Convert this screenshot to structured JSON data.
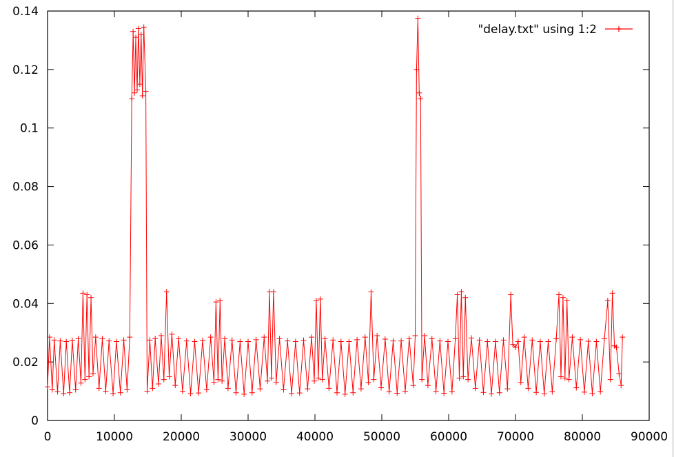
{
  "chart_data": {
    "type": "line",
    "title": "",
    "xlabel": "",
    "ylabel": "",
    "xlim": [
      0,
      90000
    ],
    "ylim": [
      0,
      0.14
    ],
    "x_ticks": [
      "0",
      "10000",
      "20000",
      "30000",
      "40000",
      "50000",
      "60000",
      "70000",
      "80000",
      "90000"
    ],
    "y_ticks": [
      "0",
      "0.02",
      "0.04",
      "0.06",
      "0.08",
      "0.1",
      "0.12",
      "0.14"
    ],
    "legend": {
      "position": "top-right",
      "label": "\"delay.txt\" using 1:2",
      "marker": "plus"
    },
    "grid": false,
    "series": [
      {
        "name": "\"delay.txt\" using 1:2",
        "color": "#ff0000",
        "marker": "plus",
        "points": [
          [
            0,
            0.0115
          ],
          [
            300,
            0.0285
          ],
          [
            700,
            0.0105
          ],
          [
            1000,
            0.0275
          ],
          [
            1500,
            0.0098
          ],
          [
            1900,
            0.0272
          ],
          [
            2400,
            0.0092
          ],
          [
            2800,
            0.027
          ],
          [
            3300,
            0.0095
          ],
          [
            3700,
            0.0274
          ],
          [
            4200,
            0.0105
          ],
          [
            4600,
            0.028
          ],
          [
            5000,
            0.0128
          ],
          [
            5300,
            0.0435
          ],
          [
            5600,
            0.014
          ],
          [
            5900,
            0.043
          ],
          [
            6200,
            0.015
          ],
          [
            6500,
            0.042
          ],
          [
            6800,
            0.016
          ],
          [
            7200,
            0.0285
          ],
          [
            7700,
            0.011
          ],
          [
            8200,
            0.028
          ],
          [
            8700,
            0.01
          ],
          [
            9200,
            0.0272
          ],
          [
            9800,
            0.0092
          ],
          [
            10300,
            0.027
          ],
          [
            10900,
            0.0095
          ],
          [
            11400,
            0.0275
          ],
          [
            11900,
            0.0105
          ],
          [
            12300,
            0.0285
          ],
          [
            12600,
            0.11
          ],
          [
            12800,
            0.133
          ],
          [
            13000,
            0.112
          ],
          [
            13200,
            0.131
          ],
          [
            13400,
            0.113
          ],
          [
            13600,
            0.134
          ],
          [
            13800,
            0.115
          ],
          [
            14000,
            0.132
          ],
          [
            14200,
            0.111
          ],
          [
            14400,
            0.1345
          ],
          [
            14700,
            0.1125
          ],
          [
            14900,
            0.01
          ],
          [
            15300,
            0.0275
          ],
          [
            15700,
            0.011
          ],
          [
            16100,
            0.028
          ],
          [
            16600,
            0.0125
          ],
          [
            17000,
            0.029
          ],
          [
            17400,
            0.014
          ],
          [
            17800,
            0.044
          ],
          [
            18200,
            0.015
          ],
          [
            18600,
            0.0295
          ],
          [
            19100,
            0.012
          ],
          [
            19600,
            0.028
          ],
          [
            20200,
            0.01
          ],
          [
            20800,
            0.0272
          ],
          [
            21400,
            0.0092
          ],
          [
            22000,
            0.027
          ],
          [
            22600,
            0.0094
          ],
          [
            23200,
            0.0274
          ],
          [
            23800,
            0.0105
          ],
          [
            24400,
            0.0285
          ],
          [
            24900,
            0.013
          ],
          [
            25200,
            0.0405
          ],
          [
            25500,
            0.014
          ],
          [
            25800,
            0.041
          ],
          [
            26100,
            0.0135
          ],
          [
            26500,
            0.028
          ],
          [
            27000,
            0.011
          ],
          [
            27600,
            0.0275
          ],
          [
            28200,
            0.0095
          ],
          [
            28800,
            0.027
          ],
          [
            29400,
            0.009
          ],
          [
            30000,
            0.027
          ],
          [
            30600,
            0.0095
          ],
          [
            31200,
            0.0276
          ],
          [
            31800,
            0.0108
          ],
          [
            32400,
            0.0285
          ],
          [
            32900,
            0.0135
          ],
          [
            33200,
            0.044
          ],
          [
            33500,
            0.0145
          ],
          [
            33800,
            0.044
          ],
          [
            34200,
            0.013
          ],
          [
            34700,
            0.028
          ],
          [
            35300,
            0.0105
          ],
          [
            35900,
            0.0272
          ],
          [
            36500,
            0.0092
          ],
          [
            37100,
            0.027
          ],
          [
            37700,
            0.0094
          ],
          [
            38300,
            0.0274
          ],
          [
            38900,
            0.0108
          ],
          [
            39500,
            0.0285
          ],
          [
            39900,
            0.0135
          ],
          [
            40200,
            0.041
          ],
          [
            40500,
            0.0145
          ],
          [
            40800,
            0.0415
          ],
          [
            41100,
            0.014
          ],
          [
            41500,
            0.028
          ],
          [
            42100,
            0.011
          ],
          [
            42700,
            0.0275
          ],
          [
            43300,
            0.0095
          ],
          [
            43900,
            0.027
          ],
          [
            44500,
            0.009
          ],
          [
            45100,
            0.027
          ],
          [
            45700,
            0.0095
          ],
          [
            46300,
            0.0276
          ],
          [
            46900,
            0.0108
          ],
          [
            47500,
            0.0285
          ],
          [
            48000,
            0.013
          ],
          [
            48400,
            0.044
          ],
          [
            48800,
            0.014
          ],
          [
            49300,
            0.029
          ],
          [
            49900,
            0.0112
          ],
          [
            50500,
            0.0278
          ],
          [
            51100,
            0.0098
          ],
          [
            51700,
            0.0272
          ],
          [
            52300,
            0.0093
          ],
          [
            52900,
            0.0272
          ],
          [
            53500,
            0.01
          ],
          [
            54100,
            0.028
          ],
          [
            54700,
            0.012
          ],
          [
            55000,
            0.029
          ],
          [
            55200,
            0.12
          ],
          [
            55400,
            0.1375
          ],
          [
            55600,
            0.112
          ],
          [
            55800,
            0.11
          ],
          [
            56000,
            0.014
          ],
          [
            56400,
            0.029
          ],
          [
            56900,
            0.012
          ],
          [
            57500,
            0.028
          ],
          [
            58100,
            0.01
          ],
          [
            58700,
            0.0272
          ],
          [
            59300,
            0.0093
          ],
          [
            59900,
            0.027
          ],
          [
            60500,
            0.0098
          ],
          [
            61000,
            0.028
          ],
          [
            61300,
            0.043
          ],
          [
            61600,
            0.0145
          ],
          [
            61900,
            0.044
          ],
          [
            62200,
            0.015
          ],
          [
            62500,
            0.042
          ],
          [
            62900,
            0.014
          ],
          [
            63400,
            0.0282
          ],
          [
            64000,
            0.011
          ],
          [
            64600,
            0.0275
          ],
          [
            65200,
            0.0096
          ],
          [
            65800,
            0.027
          ],
          [
            66400,
            0.0091
          ],
          [
            67000,
            0.027
          ],
          [
            67600,
            0.0095
          ],
          [
            68200,
            0.0275
          ],
          [
            68800,
            0.0108
          ],
          [
            69300,
            0.043
          ],
          [
            69600,
            0.026
          ],
          [
            70000,
            0.025
          ],
          [
            70400,
            0.027
          ],
          [
            70800,
            0.013
          ],
          [
            71300,
            0.0285
          ],
          [
            71900,
            0.011
          ],
          [
            72500,
            0.0275
          ],
          [
            73100,
            0.0096
          ],
          [
            73700,
            0.027
          ],
          [
            74300,
            0.0091
          ],
          [
            74900,
            0.027
          ],
          [
            75500,
            0.0098
          ],
          [
            76100,
            0.028
          ],
          [
            76500,
            0.043
          ],
          [
            76800,
            0.015
          ],
          [
            77100,
            0.042
          ],
          [
            77400,
            0.0145
          ],
          [
            77700,
            0.041
          ],
          [
            78000,
            0.014
          ],
          [
            78500,
            0.0285
          ],
          [
            79100,
            0.0112
          ],
          [
            79700,
            0.0276
          ],
          [
            80300,
            0.0097
          ],
          [
            80900,
            0.0271
          ],
          [
            81500,
            0.0092
          ],
          [
            82100,
            0.027
          ],
          [
            82700,
            0.0098
          ],
          [
            83300,
            0.028
          ],
          [
            83800,
            0.041
          ],
          [
            84200,
            0.014
          ],
          [
            84500,
            0.0435
          ],
          [
            84800,
            0.0255
          ],
          [
            85100,
            0.025
          ],
          [
            85500,
            0.016
          ],
          [
            85800,
            0.012
          ],
          [
            86000,
            0.0285
          ]
        ]
      }
    ]
  }
}
